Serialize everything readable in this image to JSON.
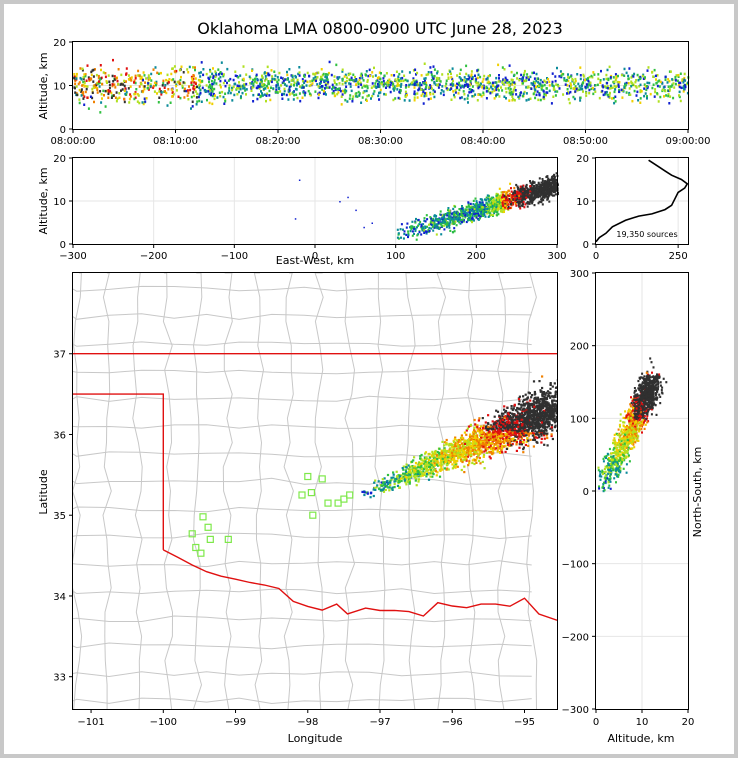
{
  "title": "Oklahoma LMA 0800-0900 UTC June 28, 2023",
  "colors": {
    "state_border": "#e01010",
    "county_border": "#c8c8c8",
    "station": "#7ee84a",
    "density": [
      "#1020d0",
      "#0a8a9a",
      "#30c040",
      "#b0e020",
      "#f0d000",
      "#f08000",
      "#e01010",
      "#303030"
    ]
  },
  "chart_data": [
    {
      "id": "time_height",
      "type": "heatmap",
      "xlabel": "",
      "ylabel": "Altitude, km",
      "x_ticks": [
        "08:00:00",
        "08:10:00",
        "08:20:00",
        "08:30:00",
        "08:40:00",
        "08:50:00",
        "09:00:00"
      ],
      "xlim_minutes": [
        0,
        60
      ],
      "ylim": [
        0,
        20
      ],
      "y_ticks": [
        "0",
        "10",
        "20"
      ]
    },
    {
      "id": "ew_altitude",
      "type": "heatmap",
      "xlabel": "East-West, km",
      "ylabel": "Altitude, km",
      "xlim": [
        -300,
        300
      ],
      "x_ticks": [
        "−300",
        "−200",
        "−100",
        "0",
        "100",
        "200",
        "300"
      ],
      "ylim": [
        0,
        20
      ],
      "y_ticks": [
        "0",
        "10",
        "20"
      ]
    },
    {
      "id": "altitude_histogram",
      "type": "line",
      "xlim": [
        0,
        280
      ],
      "x_ticks": [
        "0",
        "250"
      ],
      "ylim": [
        0,
        20
      ],
      "y_ticks": [
        "0",
        "10",
        "20"
      ],
      "annotation": "19,350 sources",
      "points": [
        [
          0,
          0.5
        ],
        [
          10,
          1.5
        ],
        [
          30,
          2.5
        ],
        [
          50,
          4
        ],
        [
          90,
          5.5
        ],
        [
          130,
          6.5
        ],
        [
          170,
          7
        ],
        [
          210,
          8
        ],
        [
          230,
          9
        ],
        [
          240,
          10.5
        ],
        [
          250,
          12
        ],
        [
          270,
          13
        ],
        [
          280,
          14
        ],
        [
          260,
          15
        ],
        [
          230,
          16
        ],
        [
          210,
          17
        ],
        [
          190,
          18
        ],
        [
          170,
          19
        ],
        [
          160,
          19.5
        ]
      ]
    },
    {
      "id": "plan_view",
      "type": "scatter",
      "xlabel": "Longitude",
      "ylabel": "Latitude",
      "xlim": [
        -101.25,
        -94.55
      ],
      "ylim": [
        32.6,
        38
      ],
      "x_ticks": [
        "−101",
        "−100",
        "−99",
        "−98",
        "−97",
        "−96",
        "−95"
      ],
      "y_ticks": [
        "33",
        "34",
        "35",
        "36",
        "37"
      ],
      "stations": [
        [
          -99.45,
          34.98
        ],
        [
          -99.38,
          34.85
        ],
        [
          -99.6,
          34.77
        ],
        [
          -99.35,
          34.7
        ],
        [
          -99.55,
          34.6
        ],
        [
          -99.48,
          34.53
        ],
        [
          -99.1,
          34.7
        ],
        [
          -98.0,
          35.48
        ],
        [
          -97.8,
          35.45
        ],
        [
          -98.08,
          35.25
        ],
        [
          -97.95,
          35.28
        ],
        [
          -97.72,
          35.15
        ],
        [
          -97.58,
          35.15
        ],
        [
          -97.5,
          35.2
        ],
        [
          -97.42,
          35.25
        ],
        [
          -97.93,
          35.0
        ]
      ]
    },
    {
      "id": "altitude_ns",
      "type": "heatmap",
      "xlabel": "Altitude, km",
      "ylabel": "North-South, km",
      "xlim": [
        0,
        20
      ],
      "x_ticks": [
        "0",
        "10",
        "20"
      ],
      "ylim": [
        -300,
        300
      ],
      "y_ticks": [
        "300",
        "200",
        "100",
        "0",
        "−100",
        "−200",
        "−300"
      ]
    }
  ]
}
